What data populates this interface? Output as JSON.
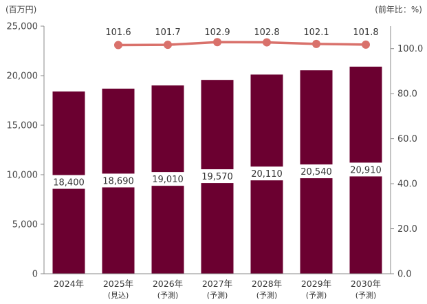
{
  "chart_data": {
    "type": "bar",
    "categories": [
      "2024年",
      "2025年",
      "2026年",
      "2027年",
      "2028年",
      "2029年",
      "2030年"
    ],
    "category_notes": [
      "",
      "(見込)",
      "(予測)",
      "(予測)",
      "(予測)",
      "(予測)",
      "(予測)"
    ],
    "left_axis": {
      "unit_label": "(百万円)",
      "ylim": [
        0,
        25000
      ],
      "ticks": [
        "0",
        "5,000",
        "10,000",
        "15,000",
        "20,000",
        "25,000"
      ]
    },
    "right_axis": {
      "unit_label": "(前年比：%)",
      "ylim": [
        0,
        110
      ],
      "ticks": [
        "0.0",
        "20.0",
        "40.0",
        "60.0",
        "80.0",
        "100.0"
      ]
    },
    "series": [
      {
        "type": "bar",
        "axis": "left",
        "values": [
          18400,
          18690,
          19010,
          19570,
          20110,
          20540,
          20910
        ],
        "labels": [
          "18,400",
          "18,690",
          "19,010",
          "19,570",
          "20,110",
          "20,540",
          "20,910"
        ],
        "color": "#6b0030"
      },
      {
        "type": "line",
        "axis": "right",
        "values": [
          null,
          101.6,
          101.7,
          102.9,
          102.8,
          102.1,
          101.8
        ],
        "labels": [
          "",
          "101.6",
          "101.7",
          "102.9",
          "102.8",
          "102.1",
          "101.8"
        ],
        "color": "#d9716b"
      }
    ],
    "grid": false,
    "legend": "none"
  }
}
